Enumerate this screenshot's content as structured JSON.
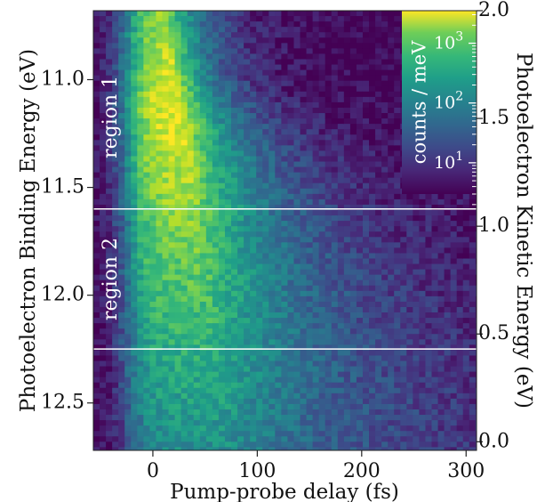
{
  "chart_data": {
    "type": "heatmap",
    "title": "",
    "xlabel": "Pump-probe delay (fs)",
    "ylabel_left": "Photoelectron Binding Energy (eV)",
    "ylabel_right": "Photoelectron Kinetic Energy (eV)",
    "xlim": [
      -57,
      310
    ],
    "ylim_left": [
      10.68,
      12.72
    ],
    "ylim_right": [
      -0.04,
      2.0
    ],
    "x_ticks": [
      0,
      100,
      200,
      300
    ],
    "x_tick_labels": [
      "0",
      "100",
      "200",
      "300"
    ],
    "y_left_ticks": [
      11.0,
      11.5,
      12.0,
      12.5
    ],
    "y_left_tick_labels": [
      "11.0",
      "11.5",
      "12.0",
      "12.5"
    ],
    "y_right_ticks": [
      2.0,
      1.5,
      1.0,
      0.5,
      0.0
    ],
    "y_right_tick_labels": [
      "2.0",
      "1.5",
      "1.0",
      "0.5",
      "0.0"
    ],
    "colormap": "viridis",
    "color_scale": "log",
    "colorbar": {
      "label": "counts / meV",
      "ticks": [
        10,
        100,
        1000
      ],
      "tick_labels": [
        "10",
        "10",
        "10"
      ],
      "tick_exponents": [
        "1",
        "2",
        "3"
      ],
      "range": [
        3,
        3500
      ],
      "placement": "inset-top-right"
    },
    "regions": [
      {
        "label": "region 1",
        "from_binding_energy": 10.68,
        "to_binding_energy": 11.6
      },
      {
        "label": "region 2",
        "from_binding_energy": 11.6,
        "to_binding_energy": 12.25
      }
    ],
    "peak": {
      "delay_fs": 25,
      "binding_energy_eV": 11.12,
      "counts_per_meV": 3000
    },
    "colors": {
      "background": "#440154",
      "divider_line": "#ffffff",
      "peak": "#e8e419"
    }
  }
}
